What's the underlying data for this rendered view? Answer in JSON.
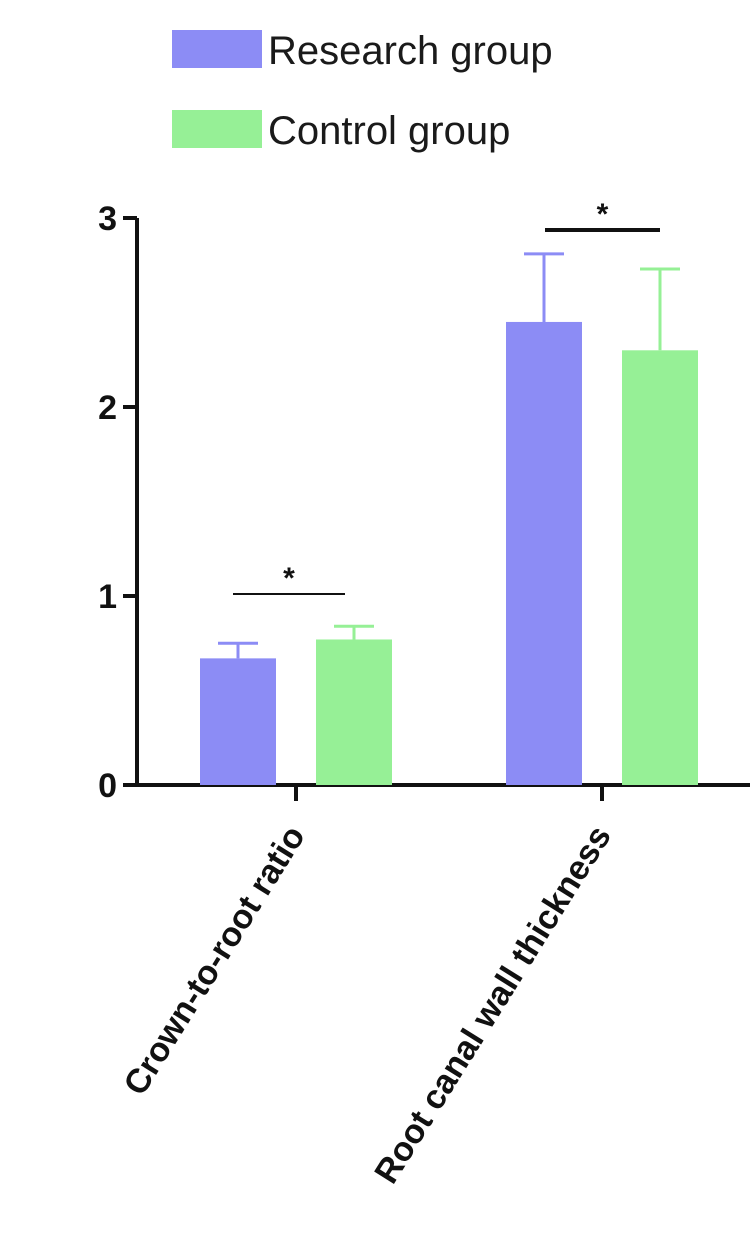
{
  "chart_data": {
    "type": "bar",
    "categories": [
      "Crown-to-root ratio",
      "Root canal wall thickness"
    ],
    "series": [
      {
        "name": "Research group",
        "color": "#8c8cf5",
        "values": [
          0.67,
          2.45
        ],
        "errors": [
          0.08,
          0.36
        ]
      },
      {
        "name": "Control group",
        "color": "#96f096",
        "values": [
          0.77,
          2.3
        ],
        "errors": [
          0.07,
          0.43
        ]
      }
    ],
    "y_ticks": [
      "0",
      "1",
      "2",
      "3"
    ],
    "ylim": [
      0,
      3
    ],
    "significance": [
      "*",
      "*"
    ],
    "legend_position": "top",
    "grid": false
  }
}
